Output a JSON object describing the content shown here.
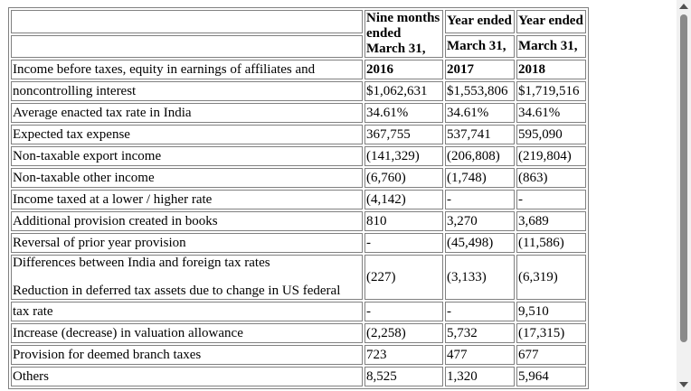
{
  "header": {
    "col1_line1": "Nine months",
    "col1_line2": "ended",
    "col1_line3": "March 31,",
    "col1_year": "2016",
    "col2_line1": "Year ended",
    "col2_line2": "March 31,",
    "col2_year": "2017",
    "col3_line1": "Year ended",
    "col3_line2": "March 31,",
    "col3_year": "2018"
  },
  "rows": [
    {
      "label": "Income before taxes, equity in earnings of affiliates and",
      "v1": "",
      "v2": "",
      "v3": ""
    },
    {
      "label": "noncontrolling interest",
      "v1": "$1,062,631",
      "v2": "$1,553,806",
      "v3": "$1,719,516"
    },
    {
      "label": "Average enacted tax rate in India",
      "v1": "34.61%",
      "v2": "34.61%",
      "v3": "34.61%"
    },
    {
      "label": "Expected tax expense",
      "v1": "367,755",
      "v2": "537,741",
      "v3": "595,090"
    },
    {
      "label": "Non-taxable export income",
      "v1": "(141,329)",
      "v2": "(206,808)",
      "v3": "(219,804)"
    },
    {
      "label": "Non-taxable other income",
      "v1": "(6,760)",
      "v2": "(1,748)",
      "v3": "(863)"
    },
    {
      "label": "Income taxed at a lower / higher rate",
      "v1": "(4,142)",
      "v2": "-",
      "v3": "-"
    },
    {
      "label": "Additional provision created in books",
      "v1": "810",
      "v2": "3,270",
      "v3": "3,689"
    },
    {
      "label": "Reversal of prior year provision",
      "v1": "-",
      "v2": "(45,498)",
      "v3": "(11,586)"
    }
  ],
  "split_row": {
    "label_top": "Differences between India and foreign tax rates",
    "label_bottom": "Reduction in deferred tax assets due to change in US federal",
    "v1": "(227)",
    "v2": "(3,133)",
    "v3": "(6,319)"
  },
  "rows_after": [
    {
      "label": "tax rate",
      "v1": "-",
      "v2": "-",
      "v3": "9,510"
    },
    {
      "label": "Increase (decrease) in valuation allowance",
      "v1": "(2,258)",
      "v2": "5,732",
      "v3": "(17,315)"
    },
    {
      "label": "Provision for deemed branch taxes",
      "v1": "723",
      "v2": "477",
      "v3": "677"
    },
    {
      "label": "Others",
      "v1": "8,525",
      "v2": "1,320",
      "v3": "5,964"
    }
  ]
}
